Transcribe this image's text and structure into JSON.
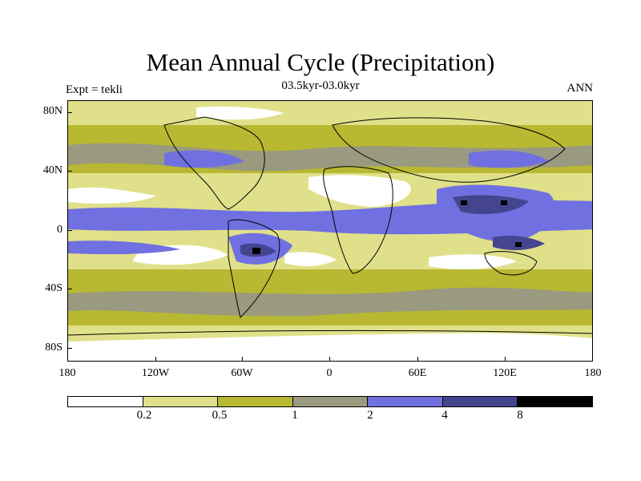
{
  "title": "Mean Annual Cycle (Precipitation)",
  "subtitle": "03.5kyr-03.0kyr",
  "left_label": "Expt = tekli",
  "right_label": "ANN",
  "y_ticks": [
    "80N",
    "40N",
    "0",
    "40S",
    "80S"
  ],
  "x_ticks": [
    "180",
    "120W",
    "60W",
    "0",
    "60E",
    "120E",
    "180"
  ],
  "colorbar": {
    "colors": [
      "#ffffff",
      "#e0e08a",
      "#b8b832",
      "#9a9a80",
      "#7070e0",
      "#45458f",
      "#000000"
    ],
    "labels": [
      "0.2",
      "0.5",
      "1",
      "2",
      "4",
      "8"
    ]
  },
  "colors": {
    "c0": "#ffffff",
    "c1": "#e0e08a",
    "c2": "#b8b832",
    "c3": "#9a9a80",
    "c4": "#7070e0",
    "c5": "#45458f",
    "c6": "#000000"
  }
}
